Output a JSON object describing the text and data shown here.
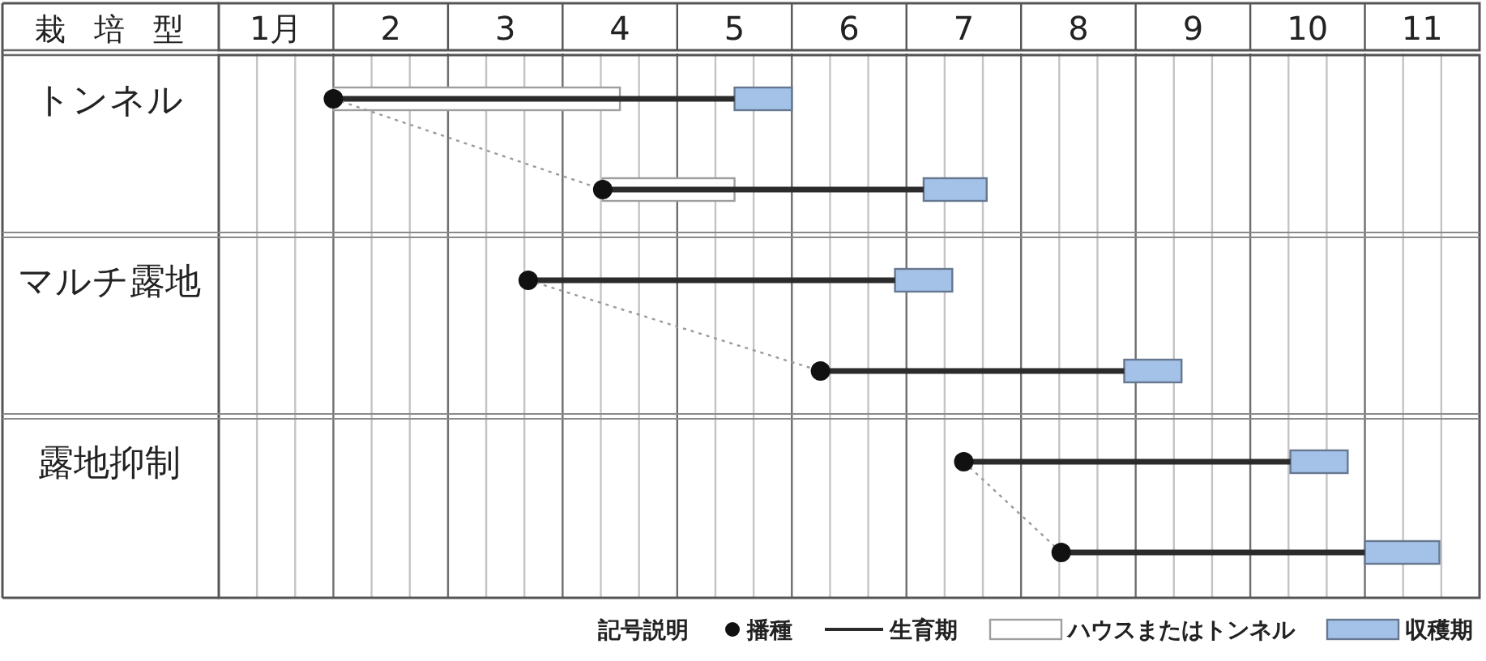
{
  "chart_data": {
    "type": "bar",
    "orientation": "horizontal",
    "ylabel": "栽培型",
    "categories": [
      "トンネル",
      null,
      "マルチ露地",
      null,
      "露地抑制",
      null
    ],
    "xlim": [
      0.5,
      11.5
    ],
    "xticks": [
      {
        "value": 1,
        "label": "1月"
      },
      2,
      3,
      4,
      5,
      6,
      7,
      8,
      9,
      10,
      11
    ],
    "grid": "x",
    "legend": "bottom right",
    "legend_title": "記号説明",
    "series": [
      {
        "name": "播種",
        "type": "scatter",
        "marker": "circle",
        "color": "#111111",
        "values": [
          1.5,
          3.85,
          3.2,
          5.75,
          7.0,
          7.85
        ]
      },
      {
        "name": "生育期",
        "type": "bar",
        "line_style": "solid",
        "color": "#2b2b2b",
        "base": [
          1.5,
          3.85,
          3.2,
          5.75,
          7.0,
          7.85
        ],
        "values": [
          3.5,
          2.8,
          3.2,
          2.65,
          2.85,
          2.65
        ]
      },
      {
        "name": "ハウスまたはトンネル",
        "type": "bar",
        "color": "#ffffff",
        "base": [
          1.5,
          3.85,
          null,
          null,
          null,
          null
        ],
        "values": [
          2.5,
          1.15,
          null,
          null,
          null,
          null
        ]
      },
      {
        "name": "収穫期",
        "type": "bar",
        "color": "#a4c2e8",
        "base": [
          5.0,
          6.65,
          6.4,
          8.4,
          9.85,
          10.5
        ],
        "values": [
          0.5,
          0.55,
          0.5,
          0.5,
          0.5,
          0.65
        ]
      },
      {
        "type": "line",
        "line_style": "dotted",
        "color": "#9a9a9a",
        "values": [
          1.5,
          3.85,
          null,
          null,
          null,
          null
        ]
      },
      {
        "type": "line",
        "line_style": "dotted",
        "color": "#9a9a9a",
        "values": [
          null,
          null,
          3.2,
          5.75,
          null,
          null
        ]
      },
      {
        "type": "line",
        "line_style": "dotted",
        "color": "#9a9a9a",
        "values": [
          null,
          null,
          null,
          null,
          7.0,
          7.85
        ]
      }
    ]
  }
}
